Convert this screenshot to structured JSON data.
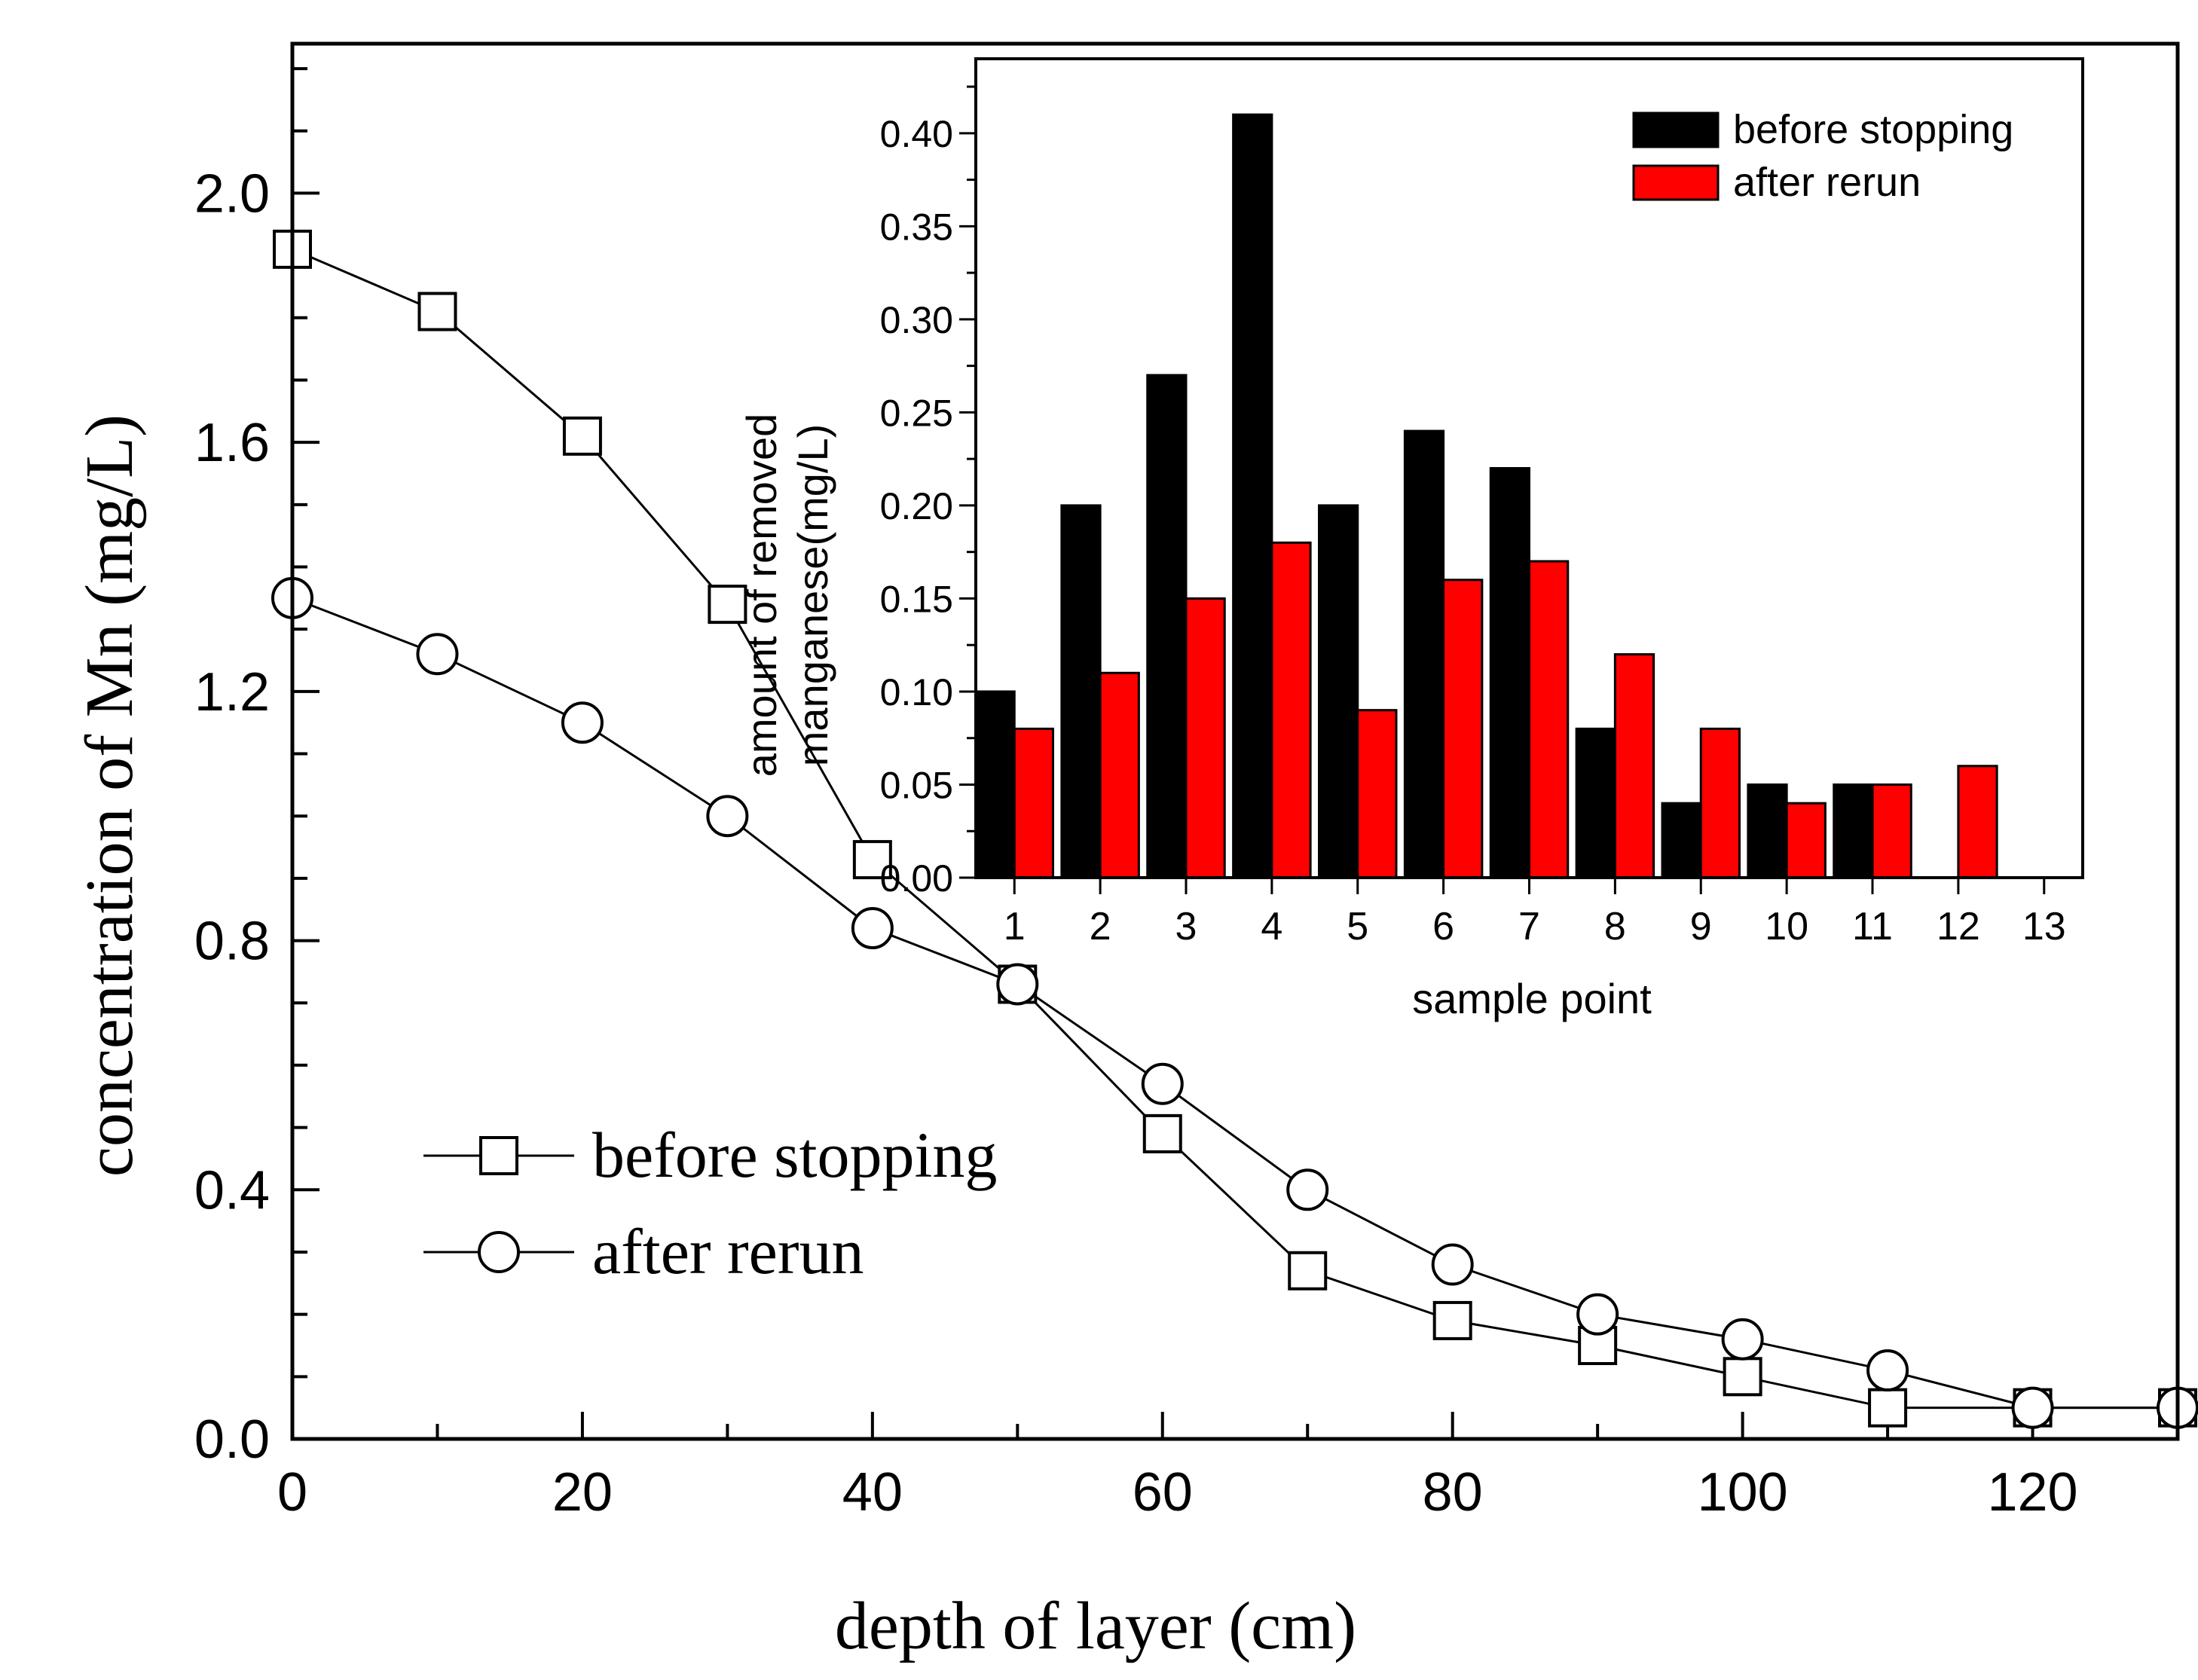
{
  "chart_data": [
    {
      "type": "line",
      "xlabel": "depth of layer (cm)",
      "ylabel": "concentration of Mn (mg/L)",
      "xlim": [
        0,
        130
      ],
      "ylim": [
        0,
        2.24
      ],
      "xticks": [
        0,
        20,
        40,
        60,
        80,
        100,
        120
      ],
      "xtick_labels": [
        "0",
        "20",
        "40",
        "60",
        "80",
        "100",
        "120"
      ],
      "yticks": [
        0.0,
        0.4,
        0.8,
        1.2,
        1.6,
        2.0
      ],
      "ytick_labels": [
        "0.0",
        "0.4",
        "0.8",
        "1.2",
        "1.6",
        "2.0"
      ],
      "legend_position": "lower-left",
      "x": [
        0,
        10,
        20,
        30,
        40,
        50,
        60,
        70,
        80,
        90,
        100,
        110,
        120,
        130
      ],
      "series": [
        {
          "name": "before stopping",
          "marker": "square",
          "values": [
            1.91,
            1.81,
            1.61,
            1.34,
            0.93,
            0.73,
            0.49,
            0.27,
            0.19,
            0.15,
            0.1,
            0.05,
            0.05,
            0.05
          ]
        },
        {
          "name": "after rerun",
          "marker": "circle",
          "values": [
            1.35,
            1.26,
            1.15,
            1.0,
            0.82,
            0.73,
            0.57,
            0.4,
            0.28,
            0.2,
            0.16,
            0.11,
            0.05,
            0.05
          ]
        }
      ]
    },
    {
      "type": "bar",
      "title": "",
      "xlabel": "sample point",
      "ylabel_lines": [
        "amount of removed",
        "manganese(mg/L)"
      ],
      "categories": [
        "1",
        "2",
        "3",
        "4",
        "5",
        "6",
        "7",
        "8",
        "9",
        "10",
        "11",
        "12",
        "13"
      ],
      "xlim": [
        0.55,
        13.45
      ],
      "ylim": [
        0,
        0.44
      ],
      "yticks": [
        0.0,
        0.05,
        0.1,
        0.15,
        0.2,
        0.25,
        0.3,
        0.35,
        0.4
      ],
      "ytick_labels": [
        "0.00",
        "0.05",
        "0.10",
        "0.15",
        "0.20",
        "0.25",
        "0.30",
        "0.35",
        "0.40"
      ],
      "legend_position": "top-right",
      "series": [
        {
          "name": "before stopping",
          "color": "#000000",
          "values": [
            0.1,
            0.2,
            0.27,
            0.41,
            0.2,
            0.24,
            0.22,
            0.08,
            0.04,
            0.05,
            0.05,
            null,
            null
          ]
        },
        {
          "name": "after rerun",
          "color": "#ff0000",
          "values": [
            0.08,
            0.11,
            0.15,
            0.18,
            0.09,
            0.16,
            0.17,
            0.12,
            0.08,
            0.04,
            0.05,
            0.06,
            null
          ]
        }
      ]
    }
  ]
}
